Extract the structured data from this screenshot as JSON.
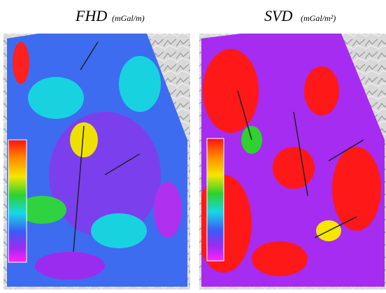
{
  "panels": [
    {
      "title": "FHD",
      "units": "(mGal/m)"
    },
    {
      "title": "SVD",
      "units": "(mGal/m²)"
    }
  ]
}
